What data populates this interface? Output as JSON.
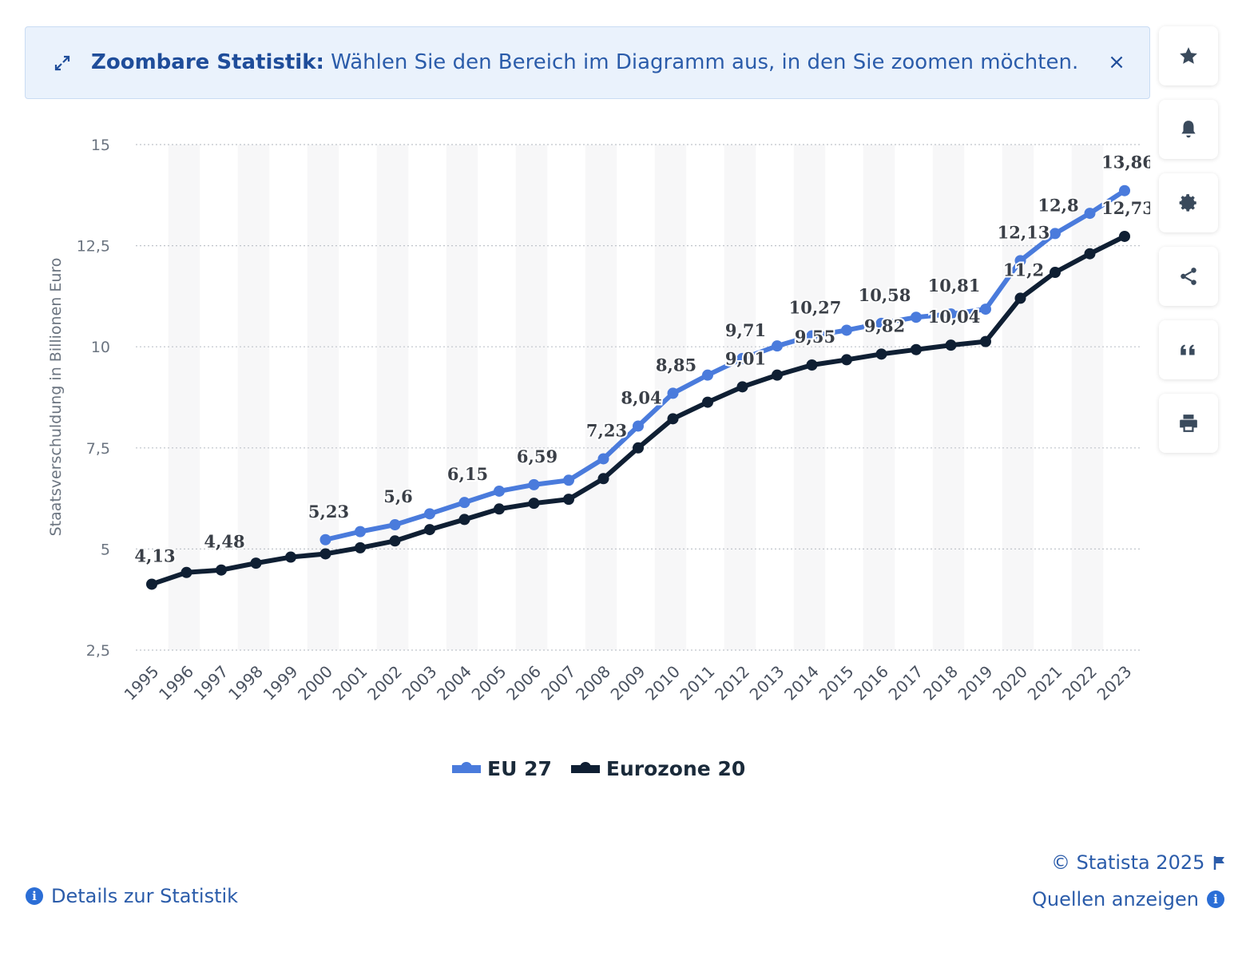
{
  "banner": {
    "title": "Zoombare Statistik:",
    "text": "Wählen Sie den Bereich im Diagramm aus, in den Sie zoomen möchten.",
    "close_glyph": "×"
  },
  "sidebar": {
    "icons": [
      "star-icon",
      "bell-icon",
      "gear-icon",
      "share-icon",
      "quote-icon",
      "print-icon"
    ]
  },
  "colors": {
    "eu27": "#4a7bdc",
    "eurozone": "#0f1f33",
    "accent": "#2b5caa"
  },
  "chart_data": {
    "type": "line",
    "ylabel": "Staatsverschuldung in Billionen Euro",
    "xlabel": "",
    "ylim": [
      2.5,
      15
    ],
    "yticks": [
      "2,5",
      "5",
      "7,5",
      "10",
      "12,5",
      "15"
    ],
    "yticks_values": [
      2.5,
      5,
      7.5,
      10,
      12.5,
      15
    ],
    "grid": true,
    "legend_position": "bottom",
    "x": [
      "1995",
      "1996",
      "1997",
      "1998",
      "1999",
      "2000",
      "2001",
      "2002",
      "2003",
      "2004",
      "2005",
      "2006",
      "2007",
      "2008",
      "2009",
      "2010",
      "2011",
      "2012",
      "2013",
      "2014",
      "2015",
      "2016",
      "2017",
      "2018",
      "2019",
      "2020",
      "2021",
      "2022",
      "2023"
    ],
    "series": [
      {
        "name": "EU 27",
        "color": "#4a7bdc",
        "values": [
          null,
          null,
          null,
          null,
          null,
          5.23,
          5.43,
          5.6,
          5.87,
          6.15,
          6.43,
          6.59,
          6.7,
          7.23,
          8.04,
          8.85,
          9.3,
          9.71,
          10.02,
          10.27,
          10.41,
          10.58,
          10.73,
          10.81,
          10.93,
          12.13,
          12.8,
          13.3,
          13.86
        ],
        "labels": [
          "",
          "",
          "",
          "",
          "",
          "5,23",
          "",
          "5,6",
          "",
          "6,15",
          "",
          "6,59",
          "",
          "7,23",
          "8,04",
          "8,85",
          "",
          "9,71",
          "",
          "10,27",
          "",
          "10,58",
          "",
          "10,81",
          "",
          "12,13",
          "12,8",
          "",
          "13,86"
        ]
      },
      {
        "name": "Eurozone 20",
        "color": "#0f1f33",
        "values": [
          4.13,
          4.42,
          4.48,
          4.65,
          4.8,
          4.88,
          5.03,
          5.2,
          5.48,
          5.73,
          5.99,
          6.13,
          6.23,
          6.74,
          7.5,
          8.22,
          8.63,
          9.01,
          9.3,
          9.55,
          9.68,
          9.82,
          9.93,
          10.04,
          10.13,
          11.2,
          11.84,
          12.3,
          12.73
        ],
        "labels": [
          "4,13",
          "",
          "4,48",
          "",
          "",
          "",
          "",
          "",
          "",
          "",
          "",
          "",
          "",
          "",
          "",
          "",
          "",
          "9,01",
          "",
          "9,55",
          "",
          "9,82",
          "",
          "10,04",
          "",
          "11,2",
          "",
          "",
          "12,73"
        ]
      }
    ]
  },
  "footer": {
    "details": "Details zur Statistik",
    "copyright": "© Statista 2025",
    "sources": "Quellen anzeigen"
  }
}
